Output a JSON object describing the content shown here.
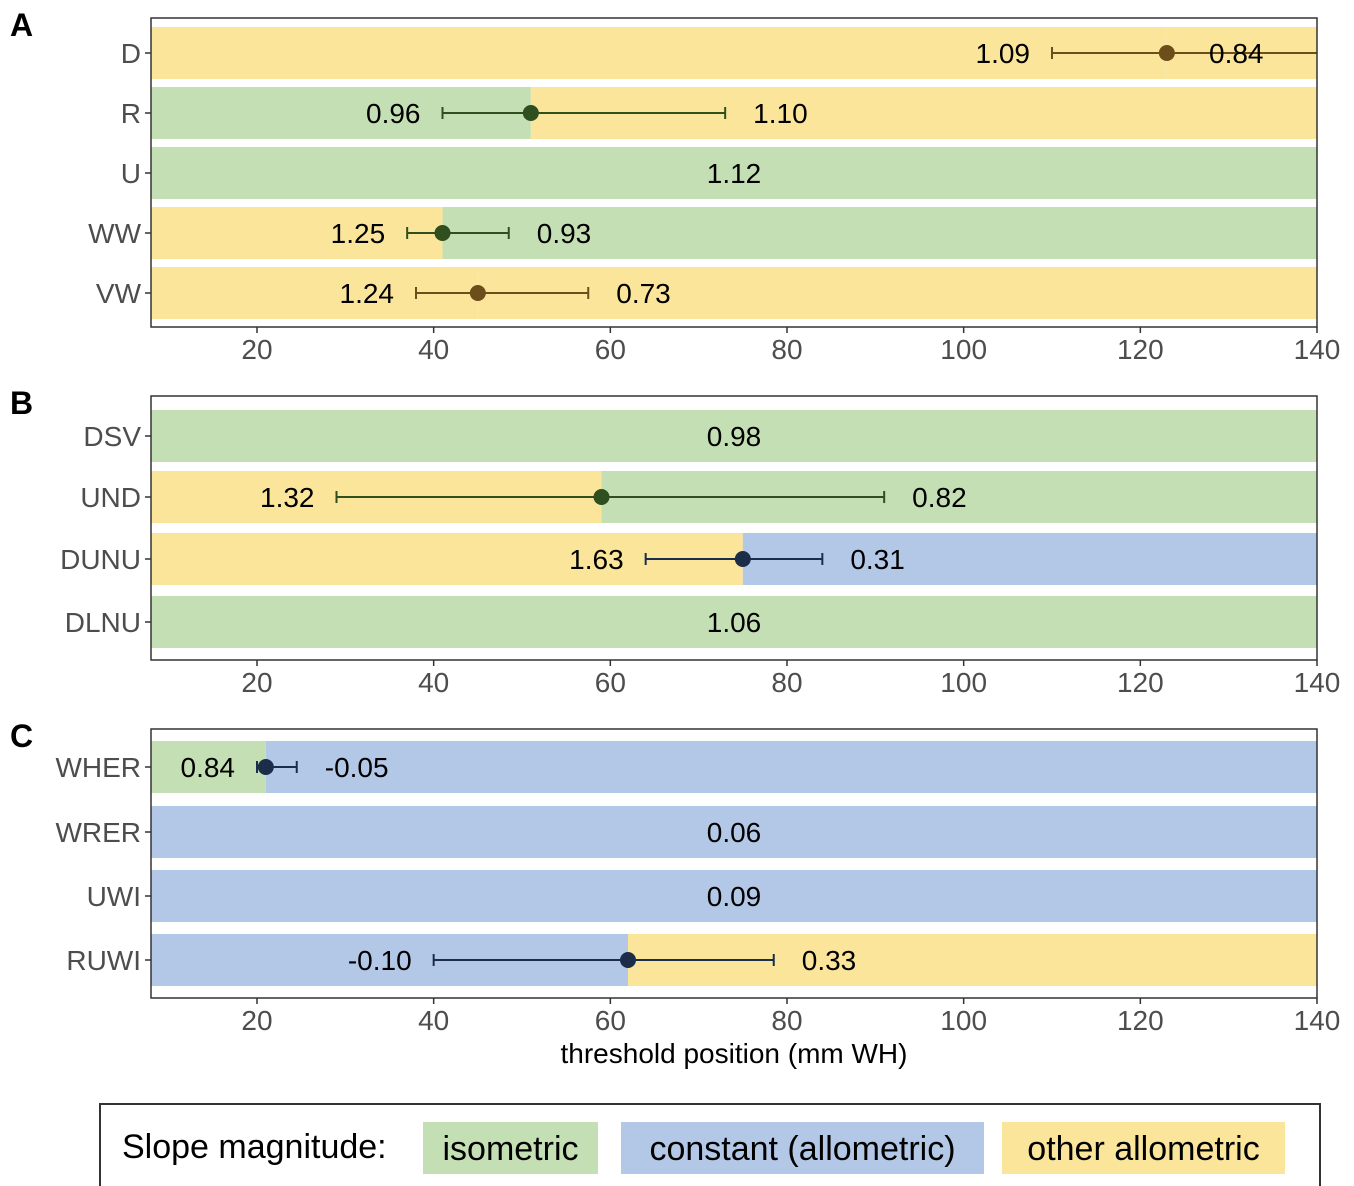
{
  "colors": {
    "isometric": "#c5dfb5",
    "constant": "#b3c7e6",
    "other": "#fae59b",
    "isometric_line": "#2f4f1f",
    "constant_line": "#1c2d4a",
    "other_line": "#6b4e1a"
  },
  "chart_data": {
    "type": "bar",
    "xlabel": "threshold position (mm WH)",
    "xlim": [
      8,
      140
    ],
    "xticks": [
      20,
      40,
      60,
      80,
      100,
      120,
      140
    ],
    "legend": {
      "title": "Slope magnitude:",
      "position": "bottom",
      "items": [
        {
          "key": "isometric",
          "label": "isometric"
        },
        {
          "key": "constant",
          "label": "constant (allometric)"
        },
        {
          "key": "other",
          "label": "other allometric"
        }
      ]
    },
    "panels": [
      {
        "label": "A",
        "rows": [
          {
            "name": "D",
            "threshold": 123,
            "ci": [
              110,
              140
            ],
            "left": {
              "class": "other",
              "slope": "1.09"
            },
            "right": {
              "class": "other",
              "slope": "0.84"
            }
          },
          {
            "name": "R",
            "threshold": 51,
            "ci": [
              41,
              73
            ],
            "left": {
              "class": "isometric",
              "slope": "0.96"
            },
            "right": {
              "class": "other",
              "slope": "1.10"
            }
          },
          {
            "name": "U",
            "threshold": null,
            "ci": null,
            "left": {
              "class": "isometric",
              "slope": "1.12"
            },
            "right": null
          },
          {
            "name": "WW",
            "threshold": 41,
            "ci": [
              37,
              48.5
            ],
            "left": {
              "class": "other",
              "slope": "1.25"
            },
            "right": {
              "class": "isometric",
              "slope": "0.93"
            }
          },
          {
            "name": "VW",
            "threshold": 45,
            "ci": [
              38,
              57.5
            ],
            "left": {
              "class": "other",
              "slope": "1.24"
            },
            "right": {
              "class": "other",
              "slope": "0.73"
            }
          }
        ]
      },
      {
        "label": "B",
        "rows": [
          {
            "name": "DSV",
            "threshold": null,
            "ci": null,
            "left": {
              "class": "isometric",
              "slope": "0.98"
            },
            "right": null
          },
          {
            "name": "UND",
            "threshold": 59,
            "ci": [
              29,
              91
            ],
            "left": {
              "class": "other",
              "slope": "1.32"
            },
            "right": {
              "class": "isometric",
              "slope": "0.82"
            }
          },
          {
            "name": "DUNU",
            "threshold": 75,
            "ci": [
              64,
              84
            ],
            "left": {
              "class": "other",
              "slope": "1.63"
            },
            "right": {
              "class": "constant",
              "slope": "0.31"
            }
          },
          {
            "name": "DLNU",
            "threshold": null,
            "ci": null,
            "left": {
              "class": "isometric",
              "slope": "1.06"
            },
            "right": null
          }
        ]
      },
      {
        "label": "C",
        "rows": [
          {
            "name": "WHER",
            "threshold": 21,
            "ci": [
              20,
              24.5
            ],
            "left": {
              "class": "isometric",
              "slope": "0.84"
            },
            "right": {
              "class": "constant",
              "slope": "-0.05"
            }
          },
          {
            "name": "WRER",
            "threshold": null,
            "ci": null,
            "left": {
              "class": "constant",
              "slope": "0.06"
            },
            "right": null
          },
          {
            "name": "UWI",
            "threshold": null,
            "ci": null,
            "left": {
              "class": "constant",
              "slope": "0.09"
            },
            "right": null
          },
          {
            "name": "RUWI",
            "threshold": 62,
            "ci": [
              40,
              78.5
            ],
            "left": {
              "class": "constant",
              "slope": "-0.10"
            },
            "right": {
              "class": "other",
              "slope": "0.33"
            }
          }
        ]
      }
    ]
  }
}
